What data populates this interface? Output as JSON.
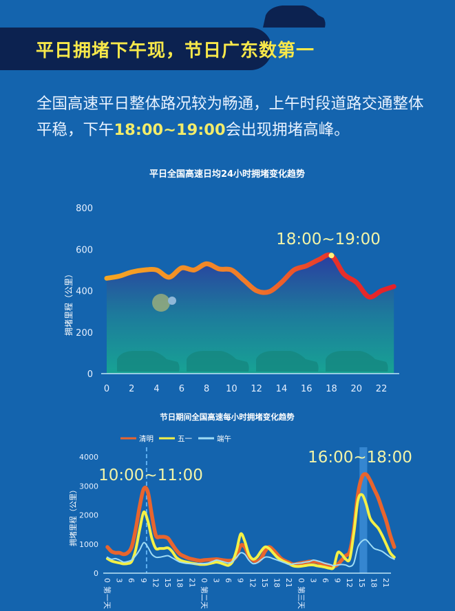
{
  "header": {
    "title": "平日拥堵下午现，节日广东数第一"
  },
  "intro": {
    "text_a": "全国高速平日整体路况较为畅通，上午时段道路交通整体平稳，下午",
    "highlight": "18:00~19:00",
    "text_b": "会出现拥堵高峰。"
  },
  "colors": {
    "background": "#1464ae",
    "band": "#0c2250",
    "title": "#f7e84a",
    "qingming": "#e8652e",
    "wuyi": "#f4f046",
    "duanwu": "#9fdcf5"
  },
  "chart_data": [
    {
      "type": "area",
      "title": "平日全国高速日均24小时拥堵变化趋势",
      "ylabel": "拥堵里程（公里）",
      "xlabel": "",
      "ylim": [
        0,
        800
      ],
      "yticks": [
        0,
        200,
        400,
        600,
        800
      ],
      "xticks": [
        0,
        2,
        4,
        6,
        8,
        10,
        12,
        14,
        16,
        18,
        20,
        22
      ],
      "x": [
        0,
        1,
        2,
        3,
        4,
        5,
        6,
        7,
        8,
        9,
        10,
        11,
        12,
        13,
        14,
        15,
        16,
        17,
        18,
        19,
        20,
        21,
        22,
        23
      ],
      "values": [
        460,
        470,
        490,
        500,
        500,
        465,
        510,
        500,
        530,
        505,
        500,
        450,
        400,
        395,
        440,
        500,
        520,
        550,
        570,
        480,
        440,
        370,
        400,
        420
      ],
      "annotation": {
        "text": "18:00~19:00",
        "x": 18,
        "y": 570
      },
      "grid": false
    },
    {
      "type": "line",
      "title": "节日期间全国高速每小时拥堵变化趋势",
      "ylabel": "拥堵里程（公里）",
      "ylim": [
        0,
        4000
      ],
      "yticks": [
        0,
        1000,
        2000,
        3000,
        4000
      ],
      "day_labels": [
        "第一天",
        "第二天",
        "第三天"
      ],
      "hour_ticks": [
        0,
        3,
        6,
        9,
        12,
        15,
        18,
        21
      ],
      "legend_position": "top",
      "series": [
        {
          "name": "清明",
          "color": "#e8652e",
          "values": [
            900,
            750,
            700,
            700,
            650,
            700,
            900,
            1500,
            2300,
            2900,
            2800,
            2000,
            1300,
            1250,
            1250,
            1200,
            1000,
            800,
            650,
            580,
            520,
            480,
            450,
            430,
            450,
            460,
            470,
            480,
            460,
            440,
            430,
            450,
            600,
            950,
            900,
            600,
            450,
            400,
            500,
            750,
            900,
            800,
            650,
            500,
            420,
            360,
            300,
            320,
            350,
            370,
            400,
            400,
            380,
            330,
            300,
            250,
            230,
            300,
            450,
            600,
            750,
            1500,
            2700,
            3300,
            3400,
            3200,
            2900,
            2600,
            2200,
            1800,
            1300,
            900
          ]
        },
        {
          "name": "五一",
          "color": "#f4f046",
          "values": [
            500,
            420,
            380,
            350,
            320,
            330,
            400,
            800,
            1500,
            2100,
            1800,
            1200,
            850,
            850,
            850,
            870,
            750,
            550,
            450,
            400,
            370,
            340,
            320,
            300,
            300,
            320,
            350,
            380,
            350,
            300,
            270,
            400,
            800,
            1350,
            1100,
            650,
            480,
            550,
            750,
            900,
            850,
            700,
            550,
            450,
            380,
            320,
            250,
            230,
            240,
            260,
            280,
            280,
            250,
            230,
            200,
            170,
            200,
            700,
            650,
            480,
            500,
            1400,
            2500,
            2700,
            2400,
            1900,
            1700,
            1550,
            1300,
            1000,
            700,
            550
          ]
        },
        {
          "name": "端午",
          "color": "#9fdcf5",
          "values": [
            550,
            480,
            500,
            450,
            380,
            400,
            450,
            600,
            800,
            1050,
            900,
            650,
            550,
            550,
            580,
            600,
            530,
            450,
            380,
            350,
            330,
            320,
            320,
            330,
            330,
            350,
            400,
            450,
            420,
            380,
            350,
            400,
            550,
            700,
            650,
            450,
            330,
            350,
            450,
            550,
            550,
            500,
            450,
            400,
            350,
            300,
            320,
            340,
            350,
            380,
            400,
            450,
            420,
            380,
            330,
            300,
            260,
            280,
            300,
            280,
            230,
            350,
            900,
            1100,
            1150,
            1000,
            850,
            800,
            750,
            650,
            550,
            480
          ]
        }
      ],
      "annotations": [
        {
          "text": "10:00~11:00",
          "marker": "dashed-line",
          "hour": 9.7
        },
        {
          "text": "16:00~18:00",
          "marker": "highlight-band",
          "hours": [
            62.4,
            64.3
          ]
        }
      ]
    }
  ]
}
